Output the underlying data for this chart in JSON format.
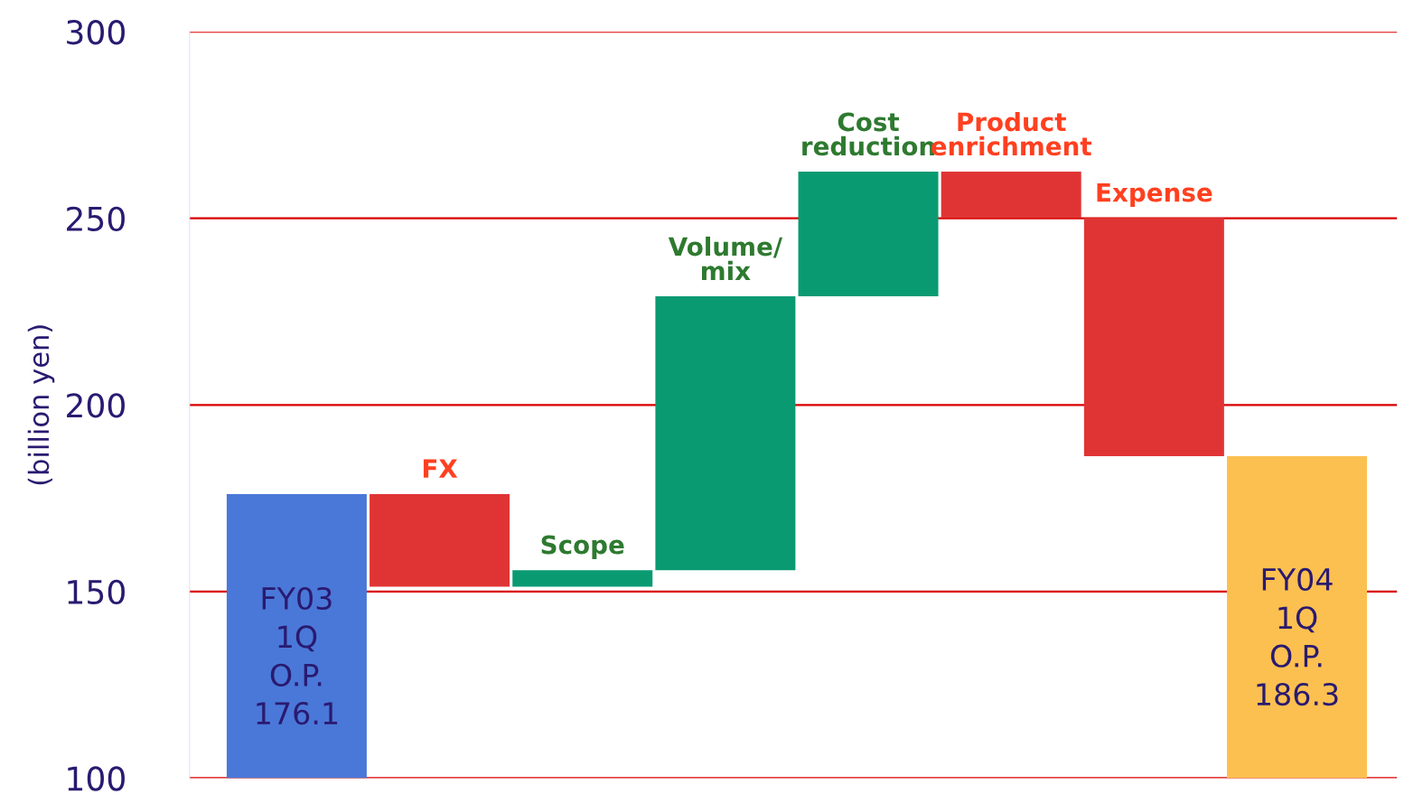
{
  "chart_data": {
    "type": "bar",
    "ylabel": "(billion yen)",
    "categories": [
      "FY03\n1Q\nO.P.",
      "FX",
      "Scope",
      "Volume/\nmix",
      "Cost\nreduction",
      "Product\nenrichment",
      "Expense",
      "FY04\n1Q\nO.P."
    ],
    "base": [
      100,
      176.1,
      151.3,
      155.7,
      229.1,
      262.5,
      250.1,
      100
    ],
    "values": [
      76.1,
      -24.8,
      4.4,
      73.4,
      33.4,
      -12.4,
      -63.8,
      86.3
    ],
    "value_labels": [
      "176.1",
      null,
      null,
      null,
      null,
      null,
      null,
      "186.3"
    ],
    "colors": [
      "#4a78d8",
      "#e03434",
      "#0a9a72",
      "#0a9a72",
      "#0a9a72",
      "#e03434",
      "#e03434",
      "#fcc050"
    ],
    "ylim": [
      100,
      300
    ],
    "yticks": [
      100,
      150,
      200,
      250,
      300
    ],
    "grid": "y",
    "tick_labels": "y"
  }
}
